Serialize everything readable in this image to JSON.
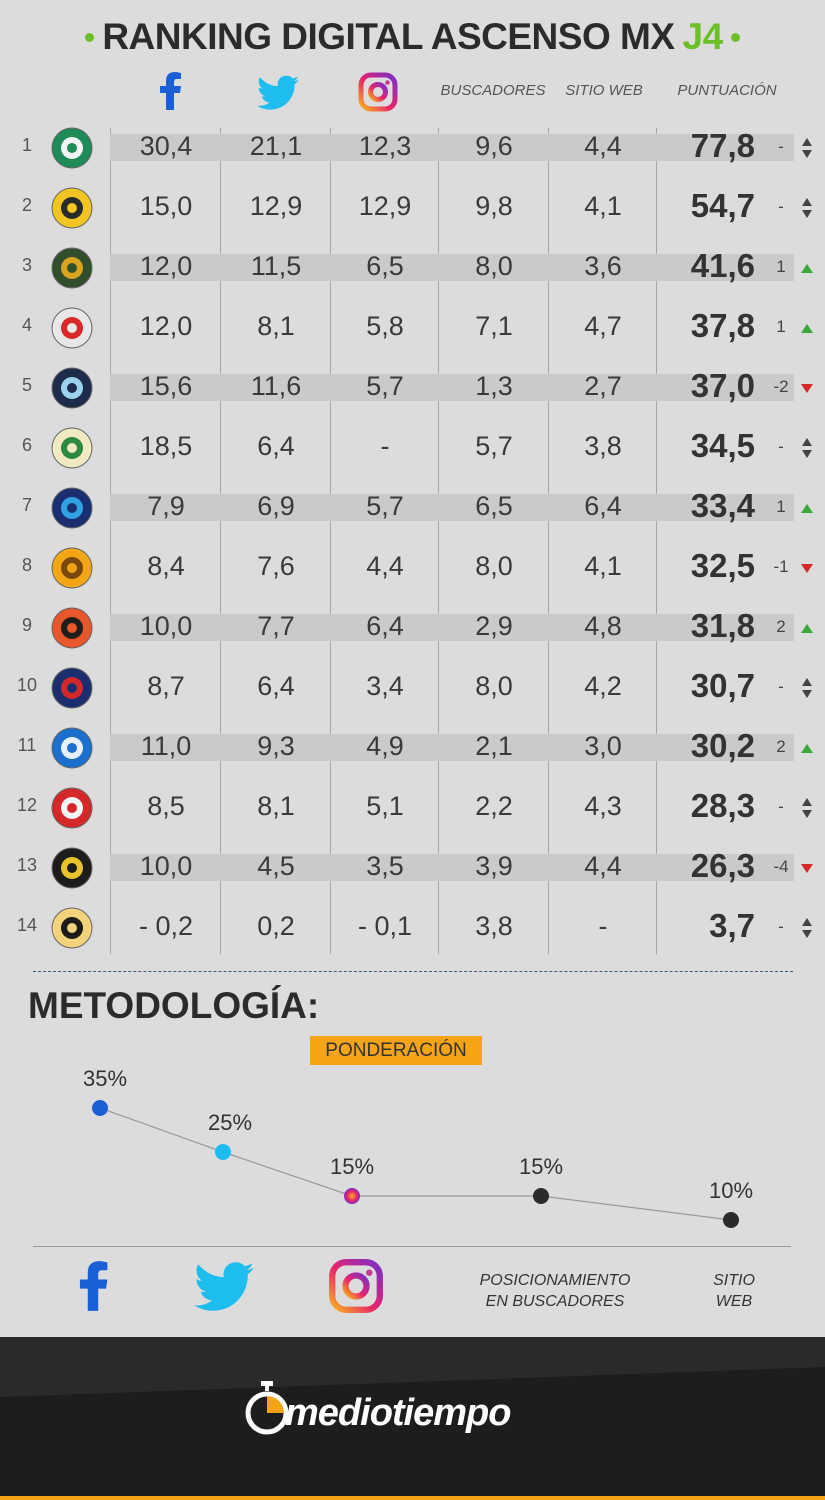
{
  "header": {
    "title": "RANKING DIGITAL ASCENSO MX",
    "title_accent": "J4",
    "accent_color": "#6cc027"
  },
  "columns": {
    "facebook_icon": "facebook-icon",
    "twitter_icon": "twitter-icon",
    "instagram_icon": "instagram-icon",
    "buscadores": "BUSCADORES",
    "sitio_web": "SITIO WEB",
    "puntuacion": "PUNTUACIÓN"
  },
  "rows": [
    {
      "rank": "1",
      "team_logo": "zacatepec-logo",
      "fb": "30,4",
      "tw": "21,1",
      "ig": "12,3",
      "bus": "9,6",
      "web": "4,4",
      "score": "77,8",
      "change": "-",
      "trend": "same"
    },
    {
      "rank": "2",
      "team_logo": "leones-negros-logo",
      "fb": "15,0",
      "tw": "12,9",
      "ig": "12,9",
      "bus": "9,8",
      "web": "4,1",
      "score": "54,7",
      "change": "-",
      "trend": "same"
    },
    {
      "rank": "3",
      "team_logo": "potros-uaem-logo",
      "fb": "12,0",
      "tw": "11,5",
      "ig": "6,5",
      "bus": "8,0",
      "web": "3,6",
      "score": "41,6",
      "change": "1",
      "trend": "up"
    },
    {
      "rank": "4",
      "team_logo": "cimarrones-logo",
      "fb": "12,0",
      "tw": "8,1",
      "ig": "5,8",
      "bus": "7,1",
      "web": "4,7",
      "score": "37,8",
      "change": "1",
      "trend": "up"
    },
    {
      "rank": "5",
      "team_logo": "tampico-madero-logo",
      "fb": "15,6",
      "tw": "11,6",
      "ig": "5,7",
      "bus": "1,3",
      "web": "2,7",
      "score": "37,0",
      "change": "-2",
      "trend": "down"
    },
    {
      "rank": "6",
      "team_logo": "loros-logo",
      "fb": "18,5",
      "tw": "6,4",
      "ig": "-",
      "bus": "5,7",
      "web": "3,8",
      "score": "34,5",
      "change": "-",
      "trend": "same"
    },
    {
      "rank": "7",
      "team_logo": "correcaminos-logo",
      "fb": "7,9",
      "tw": "6,9",
      "ig": "5,7",
      "bus": "6,5",
      "web": "6,4",
      "score": "33,4",
      "change": "1",
      "trend": "up"
    },
    {
      "rank": "8",
      "team_logo": "dorados-logo",
      "fb": "8,4",
      "tw": "7,6",
      "ig": "4,4",
      "bus": "8,0",
      "web": "4,1",
      "score": "32,5",
      "change": "-1",
      "trend": "down"
    },
    {
      "rank": "9",
      "team_logo": "alebrijes-logo",
      "fb": "10,0",
      "tw": "7,7",
      "ig": "6,4",
      "bus": "2,9",
      "web": "4,8",
      "score": "31,8",
      "change": "2",
      "trend": "up"
    },
    {
      "rank": "10",
      "team_logo": "atlante-logo",
      "fb": "8,7",
      "tw": "6,4",
      "ig": "3,4",
      "bus": "8,0",
      "web": "4,2",
      "score": "30,7",
      "change": "-",
      "trend": "same"
    },
    {
      "rank": "11",
      "team_logo": "celaya-logo",
      "fb": "11,0",
      "tw": "9,3",
      "ig": "4,9",
      "bus": "2,1",
      "web": "3,0",
      "score": "30,2",
      "change": "2",
      "trend": "up"
    },
    {
      "rank": "12",
      "team_logo": "mineros-logo",
      "fb": "8,5",
      "tw": "8,1",
      "ig": "5,1",
      "bus": "2,2",
      "web": "4,3",
      "score": "28,3",
      "change": "-",
      "trend": "same"
    },
    {
      "rank": "13",
      "team_logo": "venados-logo",
      "fb": "10,0",
      "tw": "4,5",
      "ig": "3,5",
      "bus": "3,9",
      "web": "4,4",
      "score": "26,3",
      "change": "-4",
      "trend": "down"
    },
    {
      "rank": "14",
      "team_logo": "cafetaleros-logo",
      "fb": "- 0,2",
      "tw": "0,2",
      "ig": "- 0,1",
      "bus": "3,8",
      "web": "-",
      "score": "3,7",
      "change": "-",
      "trend": "same"
    }
  ],
  "trend_colors": {
    "up": "#3aa83a",
    "down": "#d62828",
    "same": "#444444"
  },
  "methodology": {
    "title": "METODOLOGÍA:",
    "badge": "PONDERACIÓN",
    "badge_color": "#f6a315",
    "weights": [
      {
        "label": "Facebook",
        "percent": 35,
        "text": "35%",
        "color": "#1a5fd6"
      },
      {
        "label": "Twitter",
        "percent": 25,
        "text": "25%",
        "color": "#1dbdf0"
      },
      {
        "label": "Instagram",
        "percent": 15,
        "text": "15%",
        "color": "#d8307a"
      },
      {
        "label": "Buscadores",
        "percent": 15,
        "text": "15%",
        "color": "#2b2b2b"
      },
      {
        "label": "Sitio web",
        "percent": 10,
        "text": "10%",
        "color": "#2b2b2b"
      }
    ],
    "legend": {
      "buscadores_line1": "POSICIONAMIENTO",
      "buscadores_line2": "EN BUSCADORES",
      "web_line1": "SITIO",
      "web_line2": "WEB"
    }
  },
  "footer": {
    "brand": "mediotiempo",
    "logo_icon": "stopwatch-icon"
  }
}
